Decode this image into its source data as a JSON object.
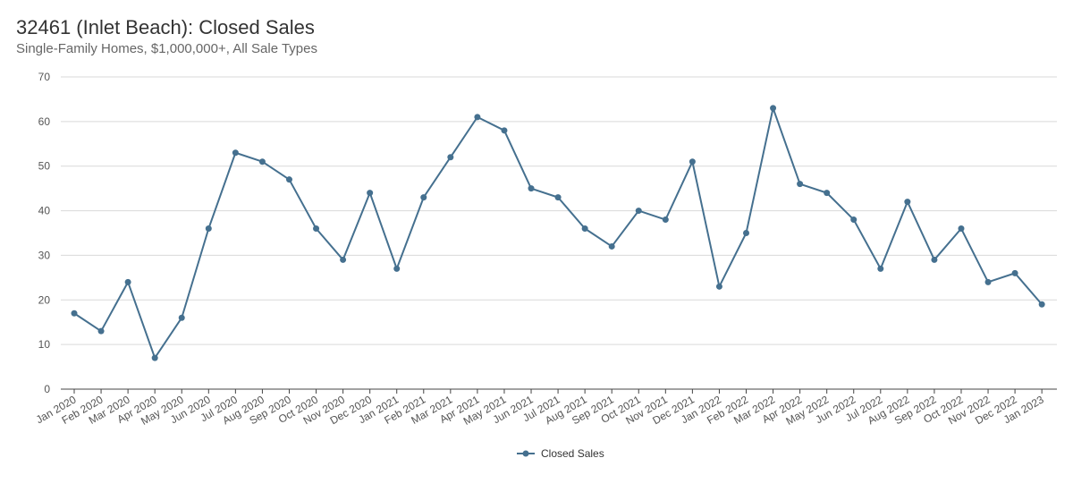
{
  "chart_data": {
    "type": "line",
    "title": "32461 (Inlet Beach): Closed Sales",
    "subtitle": "Single-Family Homes, $1,000,000+, All Sale Types",
    "xlabel": "",
    "ylabel": "",
    "ylim": [
      0,
      70
    ],
    "yticks": [
      0,
      10,
      20,
      30,
      40,
      50,
      60,
      70
    ],
    "grid": true,
    "legend_position": "bottom",
    "series_color": "#45708f",
    "categories": [
      "Jan 2020",
      "Feb 2020",
      "Mar 2020",
      "Apr 2020",
      "May 2020",
      "Jun 2020",
      "Jul 2020",
      "Aug 2020",
      "Sep 2020",
      "Oct 2020",
      "Nov 2020",
      "Dec 2020",
      "Jan 2021",
      "Feb 2021",
      "Mar 2021",
      "Apr 2021",
      "May 2021",
      "Jun 2021",
      "Jul 2021",
      "Aug 2021",
      "Sep 2021",
      "Oct 2021",
      "Nov 2021",
      "Dec 2021",
      "Jan 2022",
      "Feb 2022",
      "Mar 2022",
      "Apr 2022",
      "May 2022",
      "Jun 2022",
      "Jul 2022",
      "Aug 2022",
      "Sep 2022",
      "Oct 2022",
      "Nov 2022",
      "Dec 2022",
      "Jan 2023"
    ],
    "series": [
      {
        "name": "Closed Sales",
        "values": [
          17,
          13,
          24,
          7,
          16,
          36,
          53,
          51,
          47,
          36,
          29,
          44,
          27,
          43,
          52,
          61,
          58,
          45,
          43,
          36,
          32,
          40,
          38,
          51,
          23,
          35,
          63,
          46,
          44,
          38,
          27,
          42,
          29,
          36,
          24,
          26,
          19
        ]
      }
    ]
  }
}
